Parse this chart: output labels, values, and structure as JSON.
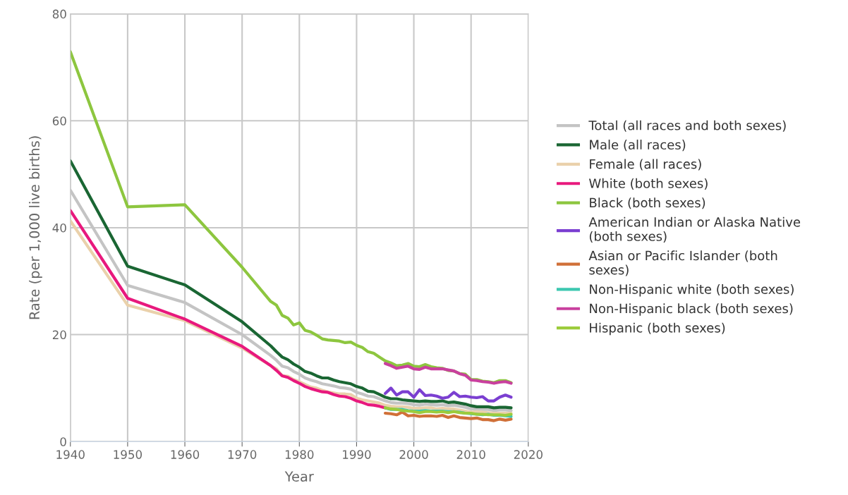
{
  "chart_data": {
    "type": "line",
    "xlabel": "Year",
    "ylabel": "Rate (per 1,000 live births)",
    "xlim": [
      1940,
      2020
    ],
    "xticks": [
      1940,
      1950,
      1960,
      1970,
      1980,
      1990,
      2000,
      2010,
      2020
    ],
    "ylim": [
      0,
      80
    ],
    "yticks": [
      0,
      20,
      40,
      60,
      80
    ],
    "grid": true,
    "legend": "right",
    "line_style": "solid",
    "marker": "none",
    "series": [
      {
        "name": "Total (all races and both sexes)",
        "color": "#c4c4c4",
        "x": [
          1940,
          1950,
          1960,
          1970,
          1975,
          1976,
          1977,
          1978,
          1979,
          1980,
          1981,
          1982,
          1983,
          1984,
          1985,
          1986,
          1987,
          1988,
          1989,
          1990,
          1991,
          1992,
          1993,
          1994,
          1995,
          1996,
          1997,
          1998,
          1999,
          2000,
          2001,
          2002,
          2003,
          2004,
          2005,
          2006,
          2007,
          2008,
          2009,
          2010,
          2011,
          2012,
          2013,
          2014,
          2015,
          2016,
          2017
        ],
        "values": [
          47.0,
          29.2,
          26.0,
          20.0,
          16.1,
          15.2,
          14.1,
          13.8,
          13.1,
          12.6,
          11.9,
          11.5,
          11.2,
          10.8,
          10.6,
          10.4,
          10.1,
          10.0,
          9.8,
          9.2,
          8.9,
          8.5,
          8.4,
          8.0,
          7.6,
          7.3,
          7.2,
          7.2,
          7.1,
          6.9,
          6.8,
          7.0,
          6.9,
          6.8,
          6.9,
          6.7,
          6.8,
          6.6,
          6.4,
          6.1,
          6.1,
          6.0,
          6.0,
          5.8,
          5.9,
          5.9,
          5.8
        ]
      },
      {
        "name": "Male (all races)",
        "color": "#1a6633",
        "x": [
          1940,
          1950,
          1960,
          1970,
          1975,
          1976,
          1977,
          1978,
          1979,
          1980,
          1981,
          1982,
          1983,
          1984,
          1985,
          1986,
          1987,
          1988,
          1989,
          1990,
          1991,
          1992,
          1993,
          1994,
          1995,
          1996,
          1997,
          1998,
          1999,
          2000,
          2001,
          2002,
          2003,
          2004,
          2005,
          2006,
          2007,
          2008,
          2009,
          2010,
          2011,
          2012,
          2013,
          2014,
          2015,
          2016,
          2017
        ],
        "values": [
          52.5,
          32.8,
          29.3,
          22.4,
          17.9,
          16.8,
          15.8,
          15.3,
          14.5,
          13.9,
          13.1,
          12.8,
          12.3,
          11.9,
          11.9,
          11.5,
          11.2,
          11.0,
          10.8,
          10.3,
          10.0,
          9.4,
          9.3,
          8.8,
          8.3,
          8.0,
          8.0,
          7.8,
          7.7,
          7.6,
          7.5,
          7.6,
          7.5,
          7.5,
          7.6,
          7.3,
          7.4,
          7.2,
          7.0,
          6.7,
          6.5,
          6.5,
          6.5,
          6.3,
          6.4,
          6.4,
          6.3
        ]
      },
      {
        "name": "Female (all races)",
        "color": "#ead1ab",
        "x": [
          1940,
          1950,
          1960,
          1970,
          1975,
          1976,
          1977,
          1978,
          1979,
          1980,
          1981,
          1982,
          1983,
          1984,
          1985,
          1986,
          1987,
          1988,
          1989,
          1990,
          1991,
          1992,
          1993,
          1994,
          1995,
          1996,
          1997,
          1998,
          1999,
          2000,
          2001,
          2002,
          2003,
          2004,
          2005,
          2006,
          2007,
          2008,
          2009,
          2010,
          2011,
          2012,
          2013,
          2014,
          2015,
          2016,
          2017
        ],
        "values": [
          41.3,
          25.5,
          22.6,
          17.5,
          14.2,
          13.6,
          12.3,
          12.2,
          11.6,
          11.2,
          10.7,
          10.2,
          10.0,
          9.6,
          9.3,
          9.1,
          8.9,
          8.9,
          8.8,
          8.1,
          7.8,
          7.6,
          7.4,
          7.2,
          6.8,
          6.6,
          6.5,
          6.5,
          6.4,
          6.2,
          6.2,
          6.3,
          6.3,
          6.1,
          6.2,
          6.1,
          6.1,
          5.9,
          5.7,
          5.5,
          5.6,
          5.5,
          5.4,
          5.3,
          5.3,
          5.3,
          5.3
        ]
      },
      {
        "name": "White (both sexes)",
        "color": "#e8197d",
        "x": [
          1940,
          1950,
          1960,
          1970,
          1975,
          1976,
          1977,
          1978,
          1979,
          1980,
          1981,
          1982,
          1983,
          1984,
          1985,
          1986,
          1987,
          1988,
          1989,
          1990,
          1991,
          1992,
          1993,
          1994,
          1995
        ],
        "values": [
          43.2,
          26.8,
          22.9,
          17.8,
          14.2,
          13.3,
          12.3,
          12.0,
          11.4,
          10.9,
          10.3,
          9.9,
          9.6,
          9.3,
          9.2,
          8.8,
          8.5,
          8.4,
          8.1,
          7.6,
          7.3,
          6.9,
          6.8,
          6.6,
          6.3
        ]
      },
      {
        "name": "Black (both sexes)",
        "color": "#8dc63f",
        "x": [
          1940,
          1950,
          1960,
          1970,
          1975,
          1976,
          1977,
          1978,
          1979,
          1980,
          1981,
          1982,
          1983,
          1984,
          1985,
          1986,
          1987,
          1988,
          1989,
          1990,
          1991,
          1992,
          1993,
          1994,
          1995,
          1996,
          1997,
          1998,
          1999,
          2000,
          2001,
          2002,
          2003,
          2004,
          2005,
          2006,
          2007,
          2008,
          2009,
          2010,
          2011,
          2012,
          2013,
          2014,
          2015,
          2016,
          2017
        ],
        "values": [
          72.9,
          43.9,
          44.3,
          32.6,
          26.2,
          25.5,
          23.6,
          23.1,
          21.8,
          22.2,
          20.8,
          20.5,
          19.9,
          19.2,
          19.0,
          18.9,
          18.8,
          18.5,
          18.6,
          18.0,
          17.6,
          16.8,
          16.5,
          15.8,
          15.1,
          14.7,
          14.2,
          14.3,
          14.6,
          14.1,
          14.0,
          14.4,
          14.0,
          13.8,
          13.7,
          13.3,
          13.2,
          12.7,
          12.6,
          11.6,
          11.6,
          11.3,
          11.2,
          11.0,
          11.4,
          11.4,
          11.0
        ]
      },
      {
        "name": "American Indian or Alaska Native\n(both sexes)",
        "color": "#7b3fd1",
        "x": [
          1995,
          1996,
          1997,
          1998,
          1999,
          2000,
          2001,
          2002,
          2003,
          2004,
          2005,
          2006,
          2007,
          2008,
          2009,
          2010,
          2011,
          2012,
          2013,
          2014,
          2015,
          2016,
          2017
        ],
        "values": [
          9.0,
          10.0,
          8.7,
          9.3,
          9.3,
          8.3,
          9.7,
          8.6,
          8.7,
          8.5,
          8.1,
          8.3,
          9.2,
          8.4,
          8.5,
          8.3,
          8.2,
          8.4,
          7.6,
          7.6,
          8.3,
          8.7,
          8.3
        ]
      },
      {
        "name": "Asian or Pacific Islander (both\nsexes)",
        "color": "#d07038",
        "x": [
          1995,
          1996,
          1997,
          1998,
          1999,
          2000,
          2001,
          2002,
          2003,
          2004,
          2005,
          2006,
          2007,
          2008,
          2009,
          2010,
          2011,
          2012,
          2013,
          2014,
          2015,
          2016,
          2017
        ],
        "values": [
          5.3,
          5.2,
          5.0,
          5.5,
          4.8,
          4.9,
          4.7,
          4.8,
          4.8,
          4.7,
          4.9,
          4.5,
          4.8,
          4.5,
          4.4,
          4.3,
          4.4,
          4.1,
          4.1,
          3.9,
          4.2,
          4.0,
          4.2
        ]
      },
      {
        "name": "Non-Hispanic white (both sexes)",
        "color": "#3cc7b0",
        "x": [
          1995,
          1996,
          1997,
          1998,
          1999,
          2000,
          2001,
          2002,
          2003,
          2004,
          2005,
          2006,
          2007,
          2008,
          2009,
          2010,
          2011,
          2012,
          2013,
          2014,
          2015,
          2016,
          2017
        ],
        "values": [
          6.3,
          6.0,
          6.0,
          6.0,
          5.8,
          5.7,
          5.7,
          5.8,
          5.7,
          5.7,
          5.7,
          5.6,
          5.6,
          5.5,
          5.3,
          5.2,
          5.1,
          5.0,
          5.1,
          4.9,
          4.9,
          4.8,
          4.7
        ]
      },
      {
        "name": "Non-Hispanic black (both sexes)",
        "color": "#c9409e",
        "x": [
          1995,
          1996,
          1997,
          1998,
          1999,
          2000,
          2001,
          2002,
          2003,
          2004,
          2005,
          2006,
          2007,
          2008,
          2009,
          2010,
          2011,
          2012,
          2013,
          2014,
          2015,
          2016,
          2017
        ],
        "values": [
          14.6,
          14.2,
          13.7,
          13.9,
          14.1,
          13.6,
          13.5,
          13.9,
          13.6,
          13.6,
          13.6,
          13.4,
          13.2,
          12.7,
          12.4,
          11.5,
          11.4,
          11.2,
          11.1,
          10.9,
          11.1,
          11.2,
          10.9
        ]
      },
      {
        "name": "Hispanic (both sexes)",
        "color": "#9ccc3c",
        "x": [
          1995,
          1996,
          1997,
          1998,
          1999,
          2000,
          2001,
          2002,
          2003,
          2004,
          2005,
          2006,
          2007,
          2008,
          2009,
          2010,
          2011,
          2012,
          2013,
          2014,
          2015,
          2016,
          2017
        ],
        "values": [
          6.3,
          6.1,
          6.0,
          5.8,
          5.7,
          5.6,
          5.4,
          5.6,
          5.6,
          5.5,
          5.6,
          5.4,
          5.6,
          5.4,
          5.3,
          5.3,
          5.1,
          5.1,
          5.0,
          5.0,
          5.0,
          4.9,
          5.1
        ]
      }
    ]
  }
}
